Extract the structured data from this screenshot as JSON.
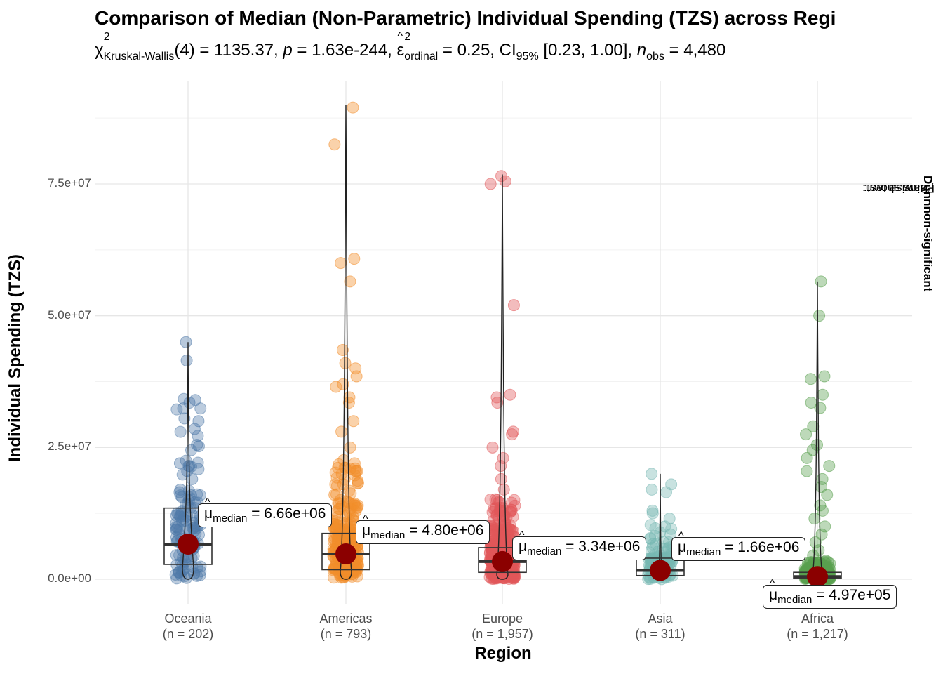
{
  "title": "Comparison of Median (Non-Parametric) Individual Spending (TZS) across Regi",
  "subtitle": {
    "chi": "χ",
    "chi_sup": "2",
    "chi_sub": "Kruskal-Wallis",
    "df": "(4) = 1135.37, ",
    "p_label": "p",
    "p_value": " = 1.63e-244, ",
    "eps": "ε",
    "eps_sup": "2",
    "eps_sub": "ordinal",
    "eps_value": " = 0.25, CI",
    "ci_sub": "95%",
    "ci_value": " [0.23, 1.00], ",
    "n_label": "n",
    "n_sub": "obs",
    "n_value": " = 4,480"
  },
  "side_caption": {
    "pre": "Pairwise test: ",
    "test": "Dunn",
    "mid": ", Bars shown: ",
    "bars": "non-significant"
  },
  "chart_data": {
    "type": "scatter",
    "xlabel": "Region",
    "ylabel": "Individual Spending (TZS)",
    "ylim": [
      -2500000,
      95000000
    ],
    "yticks": [
      0,
      25000000,
      50000000,
      75000000
    ],
    "ytick_labels": [
      "0.0e+00",
      "2.5e+07",
      "5.0e+07",
      "7.5e+07"
    ],
    "grid": true,
    "categories": [
      "Oceania",
      "Americas",
      "Europe",
      "Asia",
      "Africa"
    ],
    "category_counts": [
      "(n = 202)",
      "(n = 793)",
      "(n = 1,957)",
      "(n = 311)",
      "(n = 1,217)"
    ],
    "colors": [
      "#4e79a7",
      "#f28e2b",
      "#e15759",
      "#76b7b2",
      "#59a14f"
    ],
    "median_marker_color": "#8b0000",
    "median_labels": [
      "6.66e+06",
      "4.80e+06",
      "3.34e+06",
      "1.66e+06",
      "4.97e+05"
    ],
    "median_label_prefix": "μ",
    "median_label_sub": "median",
    "medians": [
      6660000,
      4800000,
      3340000,
      1660000,
      497000
    ],
    "boxes": [
      {
        "q1": 2800000,
        "median": 6660000,
        "q3": 13500000,
        "max": 45000000
      },
      {
        "q1": 1800000,
        "median": 4800000,
        "q3": 8700000,
        "max": 90000000
      },
      {
        "q1": 1300000,
        "median": 3340000,
        "q3": 6000000,
        "max": 76800000
      },
      {
        "q1": 700000,
        "median": 1660000,
        "q3": 4000000,
        "max": 20000000
      },
      {
        "q1": 150000,
        "median": 497000,
        "q3": 1300000,
        "max": 56500000
      }
    ],
    "outliers": [
      [
        45000000,
        41500000,
        34000000,
        33500000,
        30000000,
        28500000,
        25500000,
        22000000,
        20500000,
        19000000,
        17000000,
        16500000,
        15000000
      ],
      [
        89500000,
        82500000,
        60800000,
        60000000,
        56500000,
        43500000,
        41000000,
        40000000,
        38500000,
        37000000,
        36500000,
        34500000,
        33500000,
        30000000,
        28000000,
        25000000,
        22000000,
        20000000,
        18000000,
        16000000,
        14000000,
        12000000,
        10000000
      ],
      [
        76500000,
        75500000,
        75000000,
        52000000,
        35000000,
        34500000,
        33500000,
        28000000,
        27500000,
        25000000,
        23000000,
        21500000,
        19000000,
        17000000,
        15000000,
        13000000,
        11000000,
        9500000,
        8000000
      ],
      [
        20000000,
        18000000,
        17000000,
        16500000,
        13000000,
        12500000,
        11500000,
        10000000,
        8500000,
        7000000,
        6000000
      ],
      [
        56500000,
        50000000,
        38500000,
        38000000,
        35000000,
        33500000,
        32500000,
        29000000,
        27500000,
        25500000,
        24500000,
        23000000,
        21500000,
        20500000,
        19000000,
        17500000,
        16000000,
        14000000,
        13000000,
        11500000,
        10000000,
        8500000,
        7000000,
        5500000,
        4500000,
        3500000,
        2500000,
        1500000
      ]
    ]
  }
}
